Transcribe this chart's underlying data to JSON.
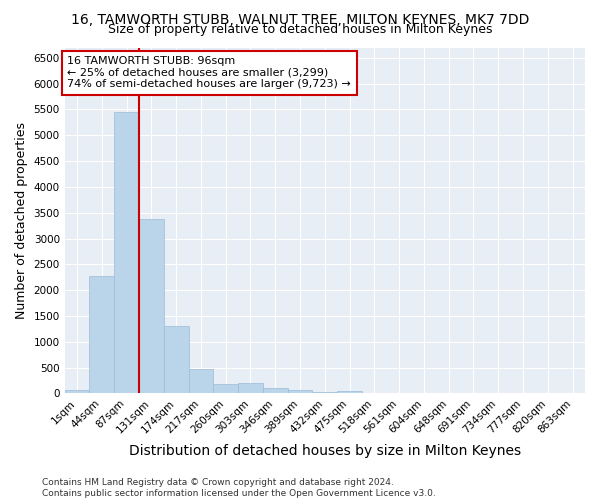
{
  "title": "16, TAMWORTH STUBB, WALNUT TREE, MILTON KEYNES, MK7 7DD",
  "subtitle": "Size of property relative to detached houses in Milton Keynes",
  "xlabel": "Distribution of detached houses by size in Milton Keynes",
  "ylabel": "Number of detached properties",
  "footer_line1": "Contains HM Land Registry data © Crown copyright and database right 2024.",
  "footer_line2": "Contains public sector information licensed under the Open Government Licence v3.0.",
  "bin_labels": [
    "1sqm",
    "44sqm",
    "87sqm",
    "131sqm",
    "174sqm",
    "217sqm",
    "260sqm",
    "303sqm",
    "346sqm",
    "389sqm",
    "432sqm",
    "475sqm",
    "518sqm",
    "561sqm",
    "604sqm",
    "648sqm",
    "691sqm",
    "734sqm",
    "777sqm",
    "820sqm",
    "863sqm"
  ],
  "bar_values": [
    70,
    2280,
    5450,
    3380,
    1300,
    475,
    175,
    200,
    100,
    75,
    30,
    55,
    0,
    0,
    0,
    0,
    0,
    0,
    0,
    0,
    0
  ],
  "bar_color": "#bad4ea",
  "bar_edgecolor": "#9bbcd8",
  "property_label": "16 TAMWORTH STUBB: 96sqm",
  "annotation_line1": "← 25% of detached houses are smaller (3,299)",
  "annotation_line2": "74% of semi-detached houses are larger (9,723) →",
  "vline_color": "#cc0000",
  "annotation_box_color": "#cc0000",
  "ylim": [
    0,
    6700
  ],
  "yticks": [
    0,
    500,
    1000,
    1500,
    2000,
    2500,
    3000,
    3500,
    4000,
    4500,
    5000,
    5500,
    6000,
    6500
  ],
  "background_color": "#e8eef5",
  "grid_color": "#ffffff",
  "title_fontsize": 10,
  "subtitle_fontsize": 9,
  "axis_label_fontsize": 9,
  "tick_fontsize": 7.5,
  "annotation_fontsize": 8,
  "footer_fontsize": 6.5
}
